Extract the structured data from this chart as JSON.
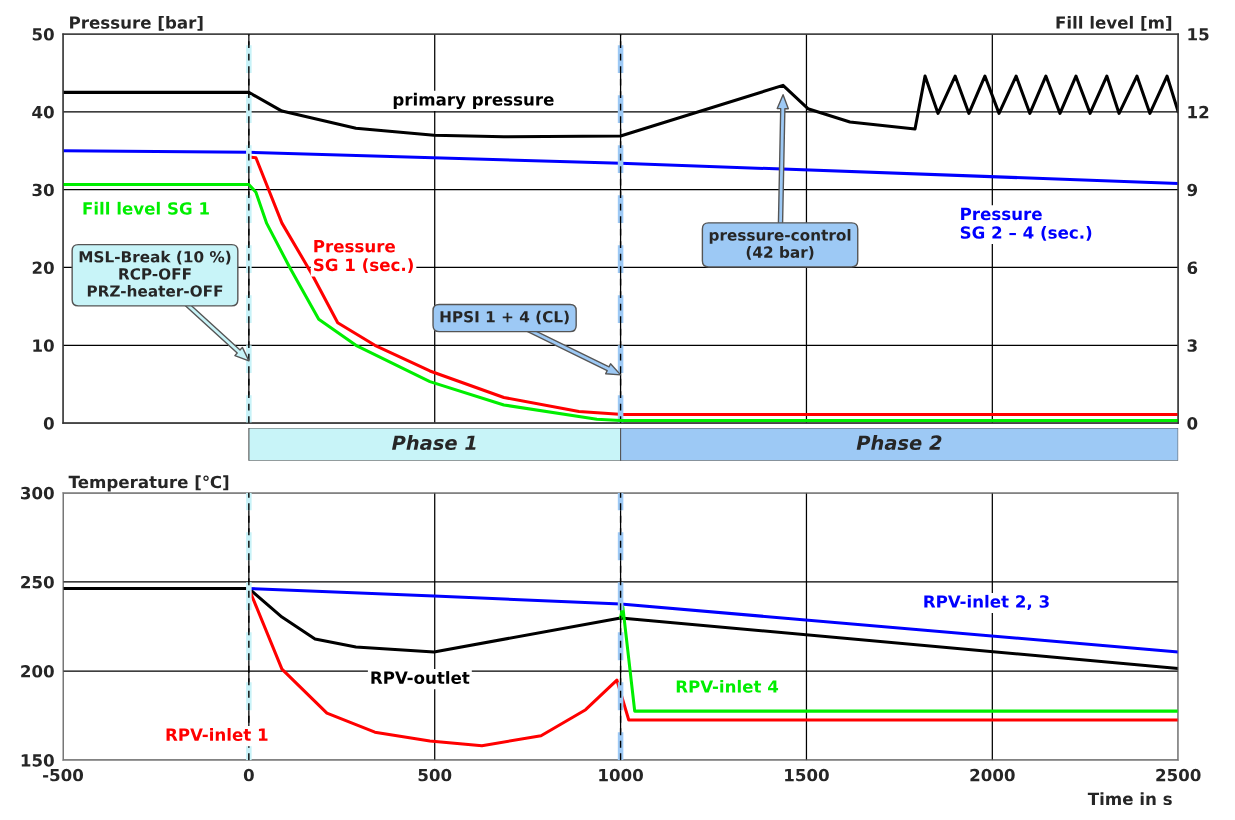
{
  "chart_data": [
    {
      "type": "line",
      "ylabel": "Pressure [bar]",
      "y2label": "Fill level [m]",
      "xlim": [
        -500,
        2500
      ],
      "xticks": [
        -500,
        0,
        500,
        1000,
        1500,
        2000,
        2500
      ],
      "ylim": [
        0,
        50
      ],
      "yticks": [
        0,
        10,
        20,
        30,
        40,
        50
      ],
      "y2lim": [
        0,
        15
      ],
      "y2ticks": [
        0,
        3,
        6,
        9,
        12,
        15
      ],
      "grid": true,
      "tick_labels": "y",
      "series": [
        {
          "name": "primary pressure",
          "color": "#000000",
          "x": [
            -500,
            0,
            89,
            288,
            498,
            686,
            1000,
            1437,
            1504,
            1617,
            1792,
            1819,
            1854,
            1900,
            1937,
            1980,
            2018,
            2064,
            2101,
            2144,
            2182,
            2225,
            2263,
            2308,
            2341,
            2389,
            2424,
            2470,
            2500
          ],
          "values": [
            42.5,
            42.5,
            40.1,
            37.9,
            37.0,
            36.8,
            36.9,
            43.4,
            40.4,
            38.7,
            37.8,
            44.6,
            39.8,
            44.6,
            39.8,
            44.6,
            39.8,
            44.6,
            39.8,
            44.6,
            39.8,
            44.6,
            39.8,
            44.6,
            39.8,
            44.6,
            39.8,
            44.6,
            40
          ]
        },
        {
          "name": "Pressure\nSG 2 – 4 (sec.)",
          "color": "#0000ff",
          "x": [
            -500,
            0,
            1000,
            2500
          ],
          "values": [
            35.0,
            34.8,
            33.4,
            30.8
          ]
        },
        {
          "name": "Pressure\nSG 1 (sec.)",
          "color": "#ff0000",
          "x": [
            0,
            19,
            89,
            169,
            239,
            339,
            487,
            686,
            888,
            1006,
            2500
          ],
          "values": [
            34.2,
            34.1,
            25.7,
            19.2,
            12.9,
            10.0,
            6.7,
            3.3,
            1.5,
            1.1,
            1.1
          ]
        },
        {
          "name": "Fill level SG 1",
          "color": "#00ee00",
          "axis": "y2",
          "x": [
            -500,
            0,
            19,
            48,
            110,
            188,
            288,
            487,
            686,
            936,
            1000,
            2500
          ],
          "values": [
            9.2,
            9.2,
            8.9,
            7.7,
            6.0,
            4.0,
            3.0,
            1.6,
            0.7,
            0.15,
            0.1,
            0.1
          ]
        }
      ],
      "ref_lines": [
        {
          "axis": "x",
          "value": 0,
          "color": "#c8f2f8",
          "line_style": "dashed"
        },
        {
          "axis": "x",
          "value": 1000,
          "color": "#9dc9f5",
          "line_style": "dashed"
        }
      ],
      "annotations": [
        "MSL-Break (10 %)\nRCP-OFF\nPRZ-heater-OFF",
        "HPSI 1 + 4 (CL)",
        "pressure-control\n(42 bar)"
      ]
    },
    {
      "type": "other",
      "annotations": [
        "Phase 1",
        "Phase 2"
      ]
    },
    {
      "type": "line",
      "ylabel": "Temperature [℃]",
      "xlabel": "Time in s",
      "xlim": [
        -500,
        2500
      ],
      "xticks": [
        -500,
        0,
        500,
        1000,
        1500,
        2000,
        2500
      ],
      "ylim": [
        150,
        300
      ],
      "yticks": [
        150,
        200,
        250,
        300
      ],
      "grid": true,
      "series": [
        {
          "name": "RPV-outlet",
          "color": "#000000",
          "x": [
            -500,
            0,
            89,
            178,
            288,
            498,
            1000,
            2500
          ],
          "values": [
            246.3,
            246.3,
            230.3,
            218,
            213.5,
            210.7,
            229.8,
            201.4
          ]
        },
        {
          "name": "RPV-inlet 2, 3",
          "color": "#0000ff",
          "x": [
            0,
            498,
            1000,
            2500
          ],
          "values": [
            246.3,
            242.1,
            237.6,
            210.7
          ]
        },
        {
          "name": "RPV-inlet 1",
          "color": "#ff0000",
          "x": [
            0,
            89,
            210,
            339,
            487,
            627,
            786,
            906,
            990,
            1022,
            2500
          ],
          "values": [
            246.3,
            201.1,
            176.4,
            165.7,
            160.7,
            158.1,
            163.7,
            178.3,
            194.9,
            172.5,
            172.5
          ]
        },
        {
          "name": "RPV-inlet 4",
          "color": "#00ee00",
          "x": [
            1000,
            1006,
            1038,
            2500
          ],
          "values": [
            230,
            236,
            177.5,
            177.5
          ]
        }
      ],
      "ref_lines": [
        {
          "axis": "x",
          "value": 0,
          "color": "#c8f2f8",
          "line_style": "dashed"
        },
        {
          "axis": "x",
          "value": 1000,
          "color": "#9dc9f5",
          "line_style": "dashed"
        }
      ]
    }
  ]
}
